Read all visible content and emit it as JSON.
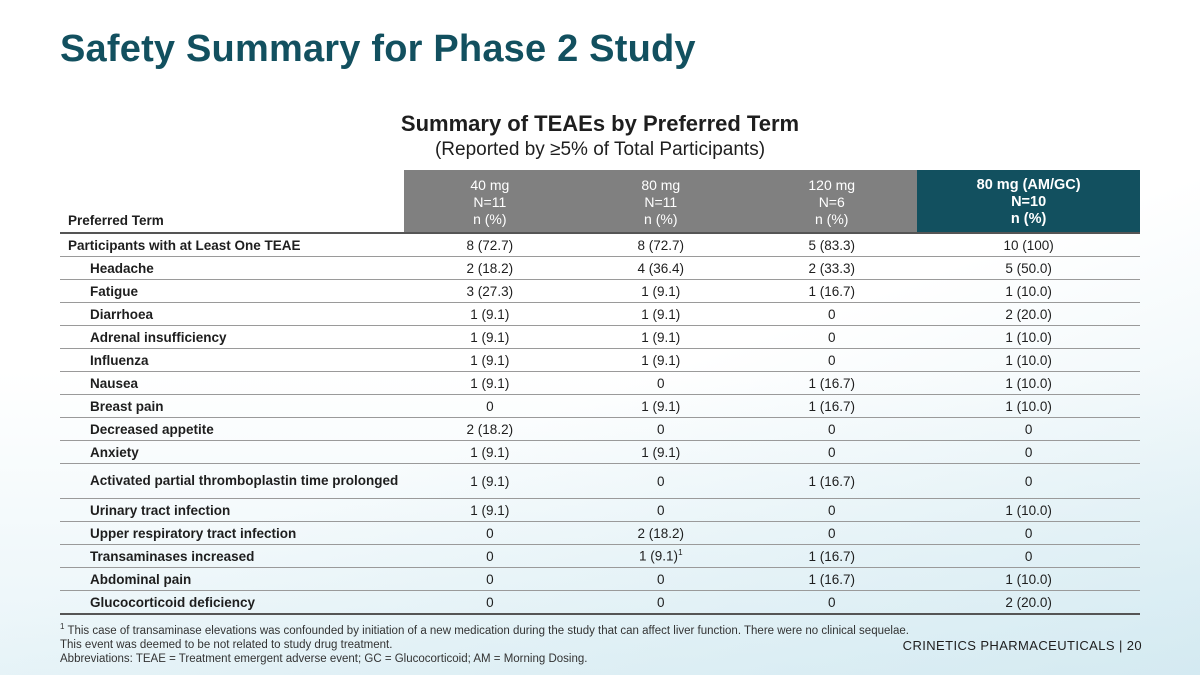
{
  "title": "Safety Summary for Phase 2 Study",
  "table_title": "Summary of TEAEs by Preferred Term",
  "table_subtitle": "(Reported by ≥5% of Total Participants)",
  "columns": {
    "term_header": "Preferred Term",
    "groups": [
      {
        "dose": "40 mg",
        "n": "N=11",
        "unit": "n (%)"
      },
      {
        "dose": "80 mg",
        "n": "N=11",
        "unit": "n (%)"
      },
      {
        "dose": "120 mg",
        "n": "N=6",
        "unit": "n (%)"
      },
      {
        "dose": "80 mg (AM/GC)",
        "n": "N=10",
        "unit": "n (%)"
      }
    ]
  },
  "rows": [
    {
      "term": "Participants  with  at  Least  One  TEAE",
      "values": [
        "8 (72.7)",
        "8  (72.7)",
        "5 (83.3)",
        "10  (100)"
      ]
    },
    {
      "term": "Headache",
      "values": [
        "2  (18.2)",
        "4  (36.4)",
        "2 (33.3)",
        "5 (50.0)"
      ]
    },
    {
      "term": "Fatigue",
      "values": [
        "3 (27.3)",
        "1  (9.1)",
        "1  (16.7)",
        "1 (10.0)"
      ]
    },
    {
      "term": "Diarrhoea",
      "values": [
        "1  (9.1)",
        "1  (9.1)",
        "0",
        "2 (20.0)"
      ]
    },
    {
      "term": "Adrenal  insufficiency",
      "values": [
        "1  (9.1)",
        "1  (9.1)",
        "0",
        "1 (10.0)"
      ]
    },
    {
      "term": "Influenza",
      "values": [
        "1  (9.1)",
        "1  (9.1)",
        "0",
        "1 (10.0)"
      ]
    },
    {
      "term": "Nausea",
      "values": [
        "1  (9.1)",
        "0",
        "1  (16.7)",
        "1 (10.0)"
      ]
    },
    {
      "term": "Breast  pain",
      "values": [
        "0",
        "1  (9.1)",
        "1  (16.7)",
        "1 (10.0)"
      ]
    },
    {
      "term": "Decreased  appetite",
      "values": [
        "2  (18.2)",
        "0",
        "0",
        "0"
      ]
    },
    {
      "term": "Anxiety",
      "values": [
        "1  (9.1)",
        "1  (9.1)",
        "0",
        "0"
      ]
    },
    {
      "term": "Activated  partial  thromboplastin  time prolonged",
      "values": [
        "1  (9.1)",
        "0",
        "1  (16.7)",
        "0"
      ]
    },
    {
      "term": "Urinary  tract  infection",
      "values": [
        "1  (9.1)",
        "0",
        "0",
        "1 (10.0)"
      ]
    },
    {
      "term": "Upper  respiratory  tract  infection",
      "values": [
        "0",
        "2  (18.2)",
        "0",
        "0"
      ]
    },
    {
      "term": "Transaminases  increased",
      "values": [
        "0",
        "1  (9.1)",
        "1  (16.7)",
        "0"
      ],
      "footnote_mark": "1"
    },
    {
      "term": "Abdominal  pain",
      "values": [
        "0",
        "0",
        "1  (16.7)",
        "1 (10.0)"
      ]
    },
    {
      "term": "Glucocorticoid  deficiency",
      "values": [
        "0",
        "0",
        "0",
        "2 (20.0)"
      ]
    }
  ],
  "footnote": {
    "mark": "1",
    "text": "This case of transaminase elevations was confounded by initiation of a new medication during the study that can affect liver function. There were no clinical sequelae. This event was deemed to be not related to study drug treatment.",
    "abbreviations": "Abbreviations: TEAE = Treatment emergent adverse event; GC = Glucocorticoid; AM = Morning Dosing."
  },
  "footer": {
    "company": "CRINETICS PHARMACEUTICALS",
    "separator": "|",
    "page": "20"
  },
  "colors": {
    "title": "#12505f",
    "header_grey": "#808080",
    "header_dark": "#12505f"
  }
}
